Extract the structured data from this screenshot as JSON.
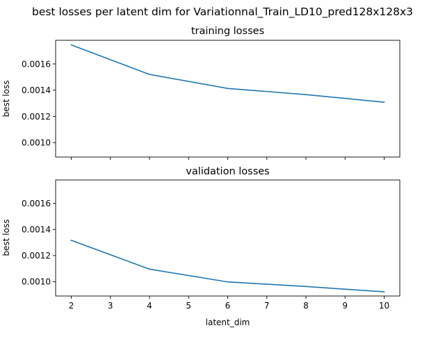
{
  "figure": {
    "suptitle": "best losses per latent dim for Variationnal_Train_LD10_pred128x128x3"
  },
  "colors": {
    "series": "#1f77b4"
  },
  "chart_data": [
    {
      "type": "line",
      "title": "training losses",
      "xlabel": "",
      "ylabel": "best loss",
      "xlim": [
        1.6,
        10.4
      ],
      "ylim": [
        0.00089,
        0.00178
      ],
      "xticks": [
        2,
        3,
        4,
        5,
        6,
        7,
        8,
        9,
        10
      ],
      "xtick_labels_visible": false,
      "yticks": [
        0.001,
        0.0012,
        0.0014,
        0.0016
      ],
      "ytick_labels": [
        "0.0010",
        "0.0012",
        "0.0014",
        "0.0016"
      ],
      "grid": false,
      "series": [
        {
          "x": [
            2,
            4,
            6,
            8,
            10
          ],
          "y": [
            0.001745,
            0.00152,
            0.001413,
            0.001366,
            0.001308
          ]
        }
      ]
    },
    {
      "type": "line",
      "title": "validation losses",
      "xlabel": "latent_dim",
      "ylabel": "best loss",
      "xlim": [
        1.6,
        10.4
      ],
      "ylim": [
        0.00089,
        0.00178
      ],
      "xticks": [
        2,
        3,
        4,
        5,
        6,
        7,
        8,
        9,
        10
      ],
      "xtick_labels": [
        "2",
        "3",
        "4",
        "5",
        "6",
        "7",
        "8",
        "9",
        "10"
      ],
      "xtick_labels_visible": true,
      "yticks": [
        0.001,
        0.0012,
        0.0014,
        0.0016
      ],
      "ytick_labels": [
        "0.0010",
        "0.0012",
        "0.0014",
        "0.0016"
      ],
      "grid": false,
      "series": [
        {
          "x": [
            2,
            4,
            6,
            8,
            10
          ],
          "y": [
            0.001317,
            0.001096,
            0.000998,
            0.000963,
            0.000922
          ]
        }
      ]
    }
  ]
}
